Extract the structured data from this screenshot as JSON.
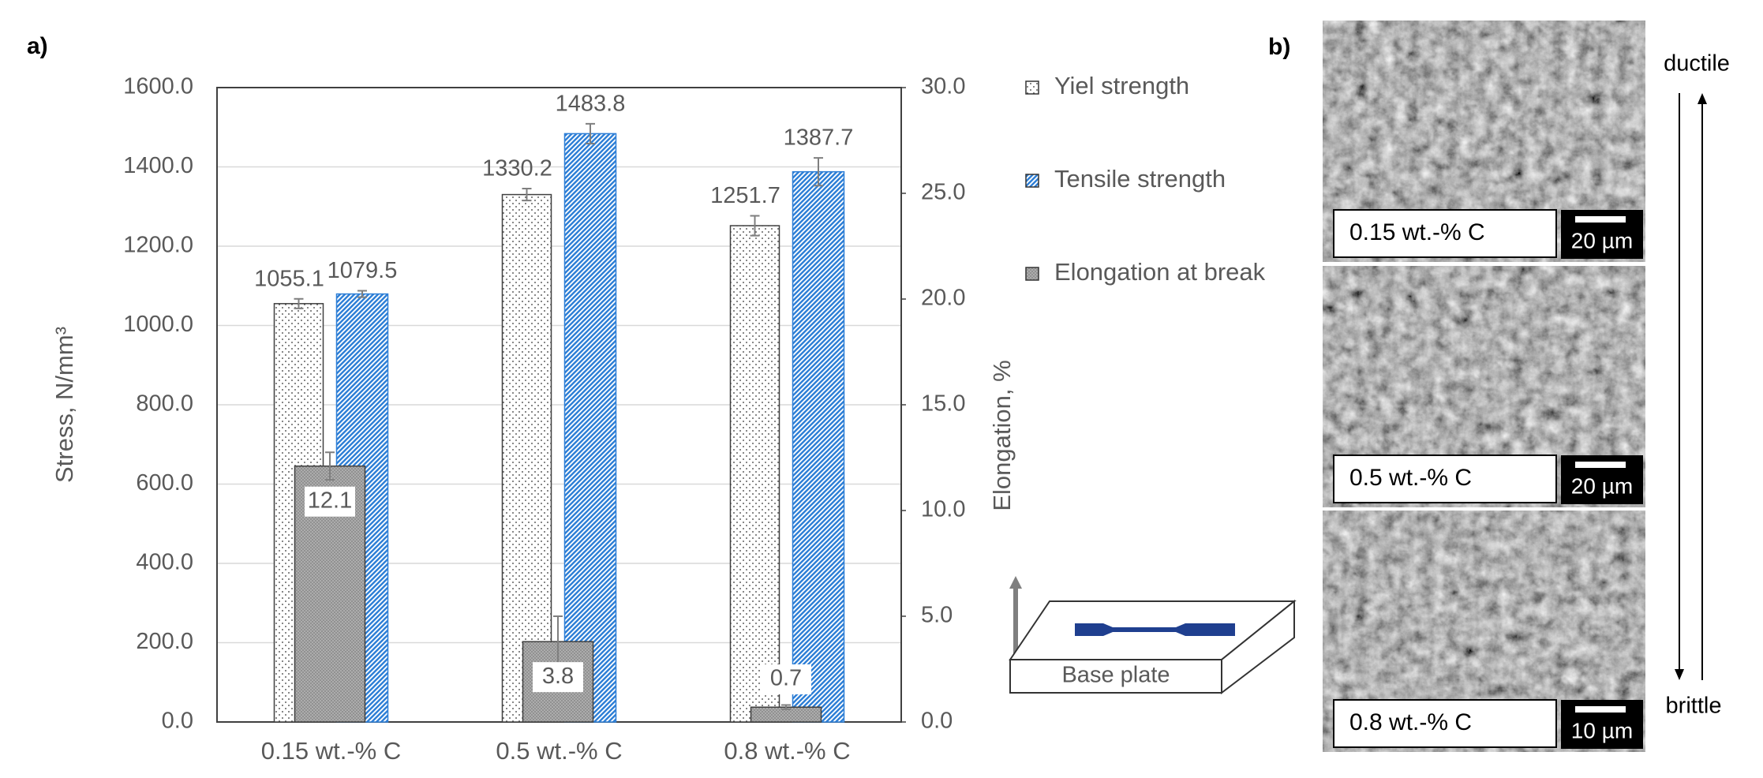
{
  "panel_a_label": "a)",
  "chart_data": {
    "type": "bar",
    "categories": [
      "0.15 wt.-% C",
      "0.5 wt.-% C",
      "0.8 wt.-% C"
    ],
    "ylabel": "Stress, N/mm³",
    "y2label": "Elongation, %",
    "ylim": [
      0,
      1600
    ],
    "yticks": [
      {
        "value": 0,
        "label": "0.0"
      },
      {
        "value": 200,
        "label": "200.0"
      },
      {
        "value": 400,
        "label": "400.0"
      },
      {
        "value": 600,
        "label": "600.0"
      },
      {
        "value": 800,
        "label": "800.0"
      },
      {
        "value": 1000,
        "label": "1000.0"
      },
      {
        "value": 1200,
        "label": "1200.0"
      },
      {
        "value": 1400,
        "label": "1400.0"
      },
      {
        "value": 1600,
        "label": "1600.0"
      }
    ],
    "y2lim": [
      0,
      30
    ],
    "y2ticks": [
      {
        "value": 0,
        "label": "0.0"
      },
      {
        "value": 5,
        "label": "5.0"
      },
      {
        "value": 10,
        "label": "10.0"
      },
      {
        "value": 15,
        "label": "15.0"
      },
      {
        "value": 20,
        "label": "20.0"
      },
      {
        "value": 25,
        "label": "25.0"
      },
      {
        "value": 30,
        "label": "30.0"
      }
    ],
    "grid": true,
    "series": [
      {
        "name": "Yiel strength",
        "color": "#ffffff",
        "pattern": "dots",
        "values": [
          1055.1,
          1330.2,
          1251.7
        ],
        "errors": [
          12,
          15,
          25
        ]
      },
      {
        "name": "Tensile strength",
        "color": "#2e7fd6",
        "pattern": "hatch",
        "values": [
          1079.5,
          1483.8,
          1387.7
        ],
        "errors": [
          8,
          25,
          35
        ]
      },
      {
        "name": "Elongation at break",
        "color": "#b4b4b4",
        "pattern": "cross",
        "axis": "y2",
        "values": [
          12.1,
          3.8,
          0.7
        ],
        "errors": [
          0.65,
          1.2,
          0.1
        ]
      }
    ]
  },
  "inset": {
    "label": "Base plate"
  },
  "panel_b": {
    "label": "b)",
    "top_label": "ductile",
    "bottom_label": "brittle",
    "images": [
      {
        "label": "0.15 wt.-% C",
        "scale": "20 µm"
      },
      {
        "label": "0.5 wt.-% C",
        "scale": "20 µm"
      },
      {
        "label": "0.8 wt.-% C",
        "scale": "10 µm"
      }
    ]
  }
}
